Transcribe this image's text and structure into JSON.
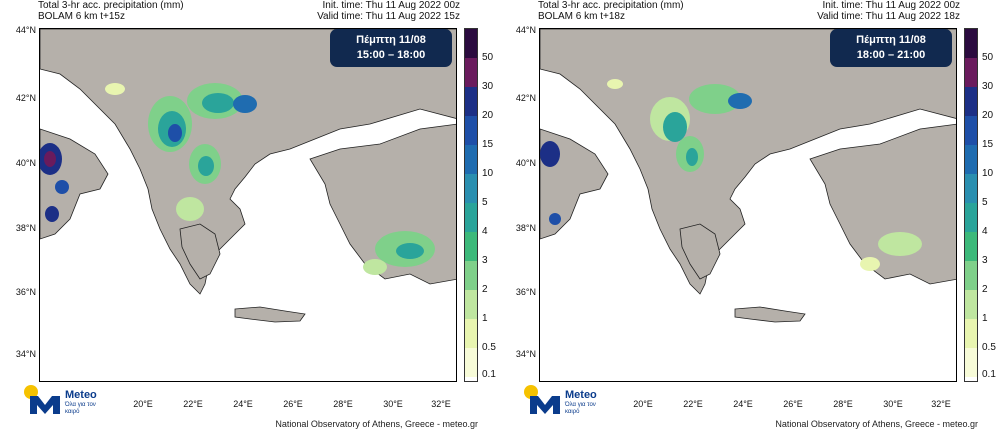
{
  "panels": [
    {
      "title_line1": "Total 3-hr acc. precipitation (mm)",
      "title_line2": "BOLAM 6 km t+15z",
      "init_time": "Init. time: Thu 11 Aug 2022 00z",
      "valid_time": "Valid time: Thu 11 Aug 2022 15z",
      "badge_day": "Πέμπτη 11/08",
      "badge_time": "15:00 – 18:00"
    },
    {
      "title_line1": "Total 3-hr acc. precipitation (mm)",
      "title_line2": "BOLAM 6 km t+18z",
      "init_time": "Init. time: Thu 11 Aug 2022 00z",
      "valid_time": "Valid time: Thu 11 Aug 2022 18z",
      "badge_day": "Πέμπτη 11/08",
      "badge_time": "18:00 – 21:00"
    }
  ],
  "latitudes": [
    "44°N",
    "42°N",
    "40°N",
    "38°N",
    "36°N",
    "34°N"
  ],
  "longitudes": [
    "20°E",
    "22°E",
    "24°E",
    "26°E",
    "28°E",
    "30°E",
    "32°E"
  ],
  "colorbar": {
    "labels": [
      "50",
      "30",
      "20",
      "15",
      "10",
      "5",
      "4",
      "3",
      "2",
      "1",
      "0.5",
      "0.1"
    ],
    "colors": [
      "#2b0b3f",
      "#6a1b5d",
      "#1c2f86",
      "#1e4fa8",
      "#1f6cb0",
      "#2a8fb0",
      "#2aa49a",
      "#3cb97a",
      "#7fd08a",
      "#bfe6a0",
      "#e8f5b0",
      "#f7fbd8"
    ]
  },
  "logo": {
    "name": "Meteo",
    "tagline": "Όλα για τον καιρό"
  },
  "footer": "National Observatory of Athens, Greece - meteo.gr",
  "colors": {
    "land": "#b5b0aa",
    "sea": "#ffffff",
    "badge": "#11294f"
  }
}
